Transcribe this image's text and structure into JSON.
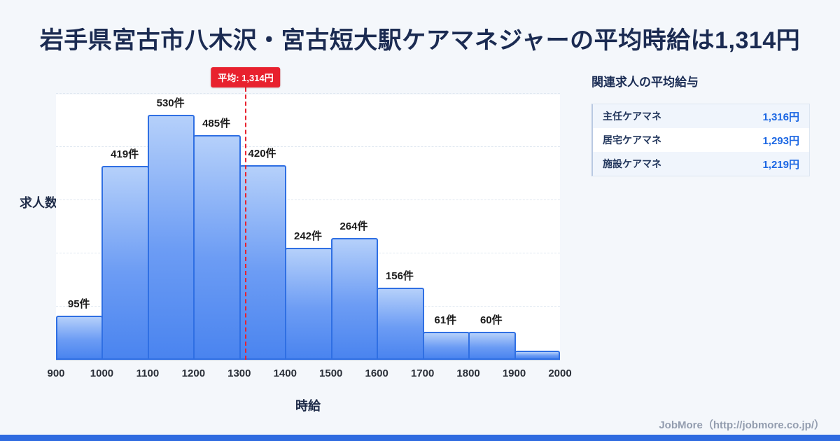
{
  "page": {
    "title": "岩手県宮古市八木沢・宮古短大駅ケアマネジャーの平均時給は1,314円"
  },
  "chart_data": {
    "type": "bar",
    "title": "岩手県宮古市八木沢・宮古短大駅ケアマネジャーの平均時給は1,314円",
    "xlabel": "時給",
    "ylabel": "求人数",
    "x_min": 900,
    "x_max": 2000,
    "x_ticks": [
      "900",
      "1000",
      "1100",
      "1200",
      "1300",
      "1400",
      "1500",
      "1600",
      "1700",
      "1800",
      "1900",
      "2000"
    ],
    "ylim": [
      0,
      575
    ],
    "grid": true,
    "legend": "none",
    "bins": [
      {
        "x0": 900,
        "x1": 1000,
        "count": 95,
        "label": "95件"
      },
      {
        "x0": 1000,
        "x1": 1100,
        "count": 419,
        "label": "419件"
      },
      {
        "x0": 1100,
        "x1": 1200,
        "count": 530,
        "label": "530件"
      },
      {
        "x0": 1200,
        "x1": 1300,
        "count": 485,
        "label": "485件"
      },
      {
        "x0": 1300,
        "x1": 1400,
        "count": 420,
        "label": "420件"
      },
      {
        "x0": 1400,
        "x1": 1500,
        "count": 242,
        "label": "242件"
      },
      {
        "x0": 1500,
        "x1": 1600,
        "count": 264,
        "label": "264件"
      },
      {
        "x0": 1600,
        "x1": 1700,
        "count": 156,
        "label": "156件"
      },
      {
        "x0": 1700,
        "x1": 1800,
        "count": 61,
        "label": "61件"
      },
      {
        "x0": 1800,
        "x1": 1900,
        "count": 60,
        "label": "60件"
      },
      {
        "x0": 1900,
        "x1": 2000,
        "count": 20,
        "label": ""
      }
    ],
    "average_line": {
      "value": 1314,
      "label": "平均: 1,314円",
      "color": "#e8212e"
    },
    "colors": {
      "bar_top": "#b5d0fa",
      "bar_bottom": "#4a84ef",
      "bar_border": "#2f6fe3"
    }
  },
  "side_panel": {
    "title": "関連求人の平均給与",
    "rows": [
      {
        "label": "主任ケアマネ",
        "value": "1,316円"
      },
      {
        "label": "居宅ケアマネ",
        "value": "1,293円"
      },
      {
        "label": "施設ケアマネ",
        "value": "1,219円"
      }
    ]
  },
  "footer": {
    "credit": "JobMore（http://jobmore.co.jp/）"
  }
}
